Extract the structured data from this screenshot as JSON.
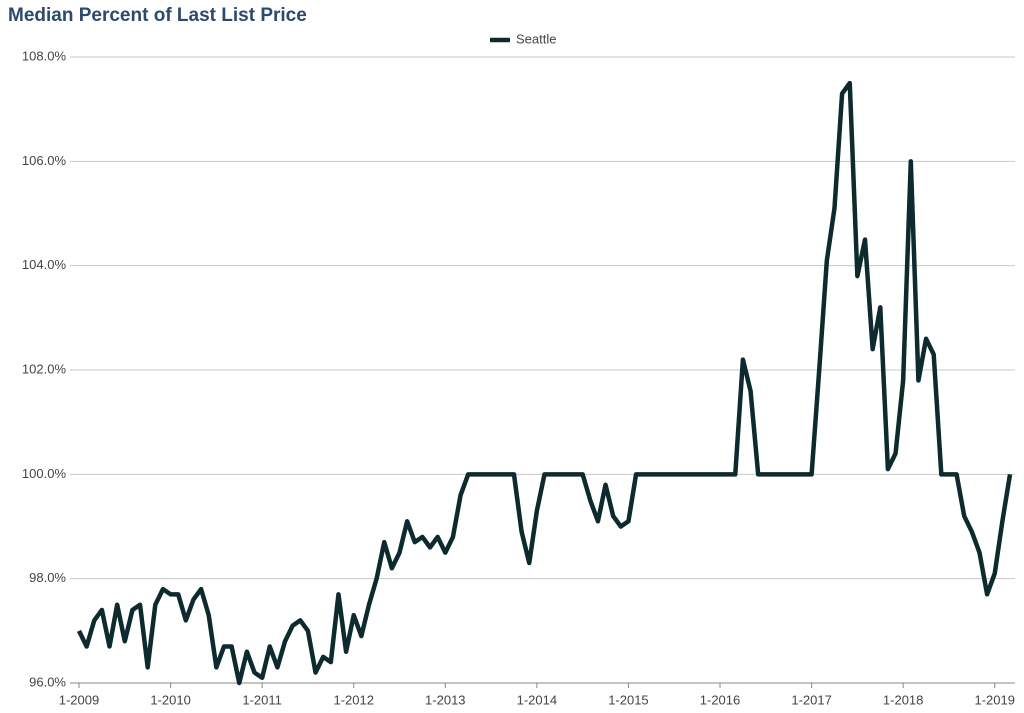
{
  "chart_data": {
    "type": "line",
    "title": "Median Percent of Last List Price",
    "categories": [
      "1-2009",
      null,
      null,
      null,
      null,
      null,
      null,
      null,
      null,
      null,
      null,
      null,
      "1-2010",
      null,
      null,
      null,
      null,
      null,
      null,
      null,
      null,
      null,
      null,
      null,
      "1-2011",
      null,
      null,
      null,
      null,
      null,
      null,
      null,
      null,
      null,
      null,
      null,
      "1-2012",
      null,
      null,
      null,
      null,
      null,
      null,
      null,
      null,
      null,
      null,
      null,
      "1-2013",
      null,
      null,
      null,
      null,
      null,
      null,
      null,
      null,
      null,
      null,
      null,
      "1-2014",
      null,
      null,
      null,
      null,
      null,
      null,
      null,
      null,
      null,
      null,
      null,
      "1-2015",
      null,
      null,
      null,
      null,
      null,
      null,
      null,
      null,
      null,
      null,
      null,
      "1-2016",
      null,
      null,
      null,
      null,
      null,
      null,
      null,
      null,
      null,
      null,
      null,
      "1-2017",
      null,
      null,
      null,
      null,
      null,
      null,
      null,
      null,
      null,
      null,
      null,
      "1-2018",
      null,
      null,
      null,
      null,
      null,
      null,
      null,
      null,
      null,
      null,
      null,
      "1-2019",
      null,
      null
    ],
    "series": [
      {
        "name": "Seattle",
        "color": "#0d2a2e",
        "values": [
          97.0,
          96.7,
          97.2,
          97.4,
          96.7,
          97.5,
          96.8,
          97.4,
          97.5,
          96.3,
          97.5,
          97.8,
          97.7,
          97.7,
          97.2,
          97.6,
          97.8,
          97.3,
          96.3,
          96.7,
          96.7,
          96.0,
          96.6,
          96.2,
          96.1,
          96.7,
          96.3,
          96.8,
          97.1,
          97.2,
          97.0,
          96.2,
          96.5,
          96.4,
          97.7,
          96.6,
          97.3,
          96.9,
          97.5,
          98.0,
          98.7,
          98.2,
          98.5,
          99.1,
          98.7,
          98.8,
          98.6,
          98.8,
          98.5,
          98.8,
          99.6,
          100.0,
          100.0,
          100.0,
          100.0,
          100.0,
          100.0,
          100.0,
          98.9,
          98.3,
          99.3,
          100.0,
          100.0,
          100.0,
          100.0,
          100.0,
          100.0,
          99.5,
          99.1,
          99.8,
          99.2,
          99.0,
          99.1,
          100.0,
          100.0,
          100.0,
          100.0,
          100.0,
          100.0,
          100.0,
          100.0,
          100.0,
          100.0,
          100.0,
          100.0,
          100.0,
          100.0,
          102.2,
          101.6,
          100.0,
          100.0,
          100.0,
          100.0,
          100.0,
          100.0,
          100.0,
          100.0,
          102.0,
          104.1,
          105.1,
          107.3,
          107.5,
          103.8,
          104.5,
          102.4,
          103.2,
          100.1,
          100.4,
          101.8,
          106.0,
          101.8,
          102.6,
          102.3,
          100.0,
          100.0,
          100.0,
          99.2,
          98.9,
          98.5,
          97.7,
          98.1,
          99.1,
          100.0
        ]
      }
    ],
    "ylim": [
      96,
      108
    ],
    "yticks": [
      {
        "value": 96,
        "label": "96.0%"
      },
      {
        "value": 98,
        "label": "98.0%"
      },
      {
        "value": 100,
        "label": "100.0%"
      },
      {
        "value": 102,
        "label": "102.0%"
      },
      {
        "value": 104,
        "label": "104.0%"
      },
      {
        "value": 106,
        "label": "106.0%"
      },
      {
        "value": 108,
        "label": "108.0%"
      }
    ],
    "grid": true,
    "legend": "top"
  }
}
